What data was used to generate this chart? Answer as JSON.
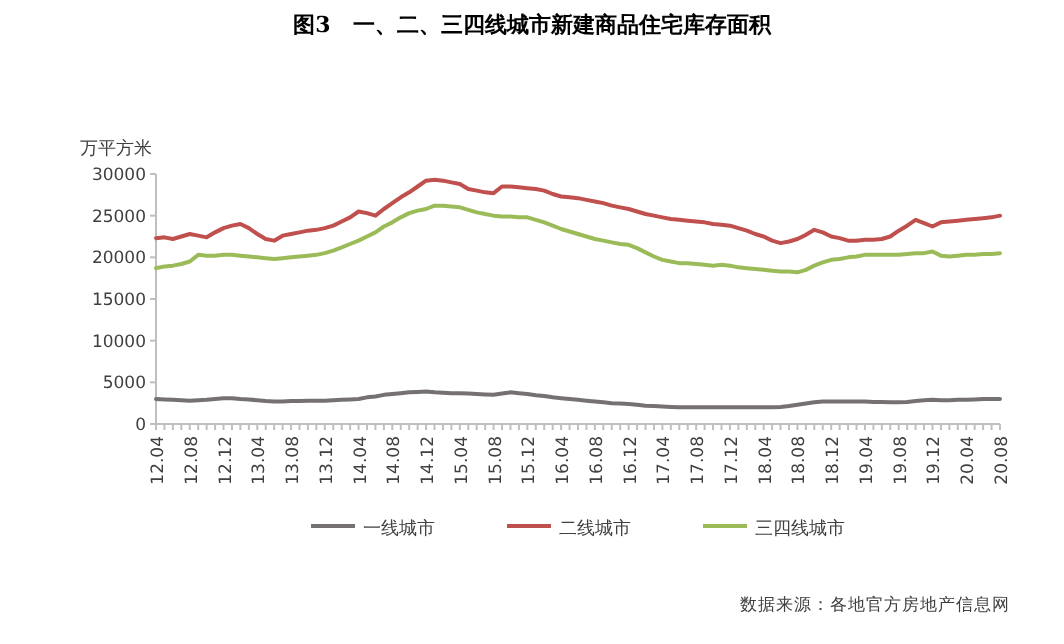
{
  "chart_data": {
    "type": "line",
    "title": "图3　一、二、三四线城市新建商品住宅库存面积",
    "ylabel": "万平方米",
    "annotations": [
      "数据来源：各地官方房地产信息网"
    ],
    "categories": [
      "12.04",
      null,
      null,
      null,
      "12.08",
      null,
      null,
      null,
      "12.12",
      null,
      null,
      null,
      "13.04",
      null,
      null,
      null,
      "13.08",
      null,
      null,
      null,
      "13.12",
      null,
      null,
      null,
      "14.04",
      null,
      null,
      null,
      "14.08",
      null,
      null,
      null,
      "14.12",
      null,
      null,
      null,
      "15.04",
      null,
      null,
      null,
      "15.08",
      null,
      null,
      null,
      "15.12",
      null,
      null,
      null,
      "16.04",
      null,
      null,
      null,
      "16.08",
      null,
      null,
      null,
      "16.12",
      null,
      null,
      null,
      "17.04",
      null,
      null,
      null,
      "17.08",
      null,
      null,
      null,
      "17.12",
      null,
      null,
      null,
      "18.04",
      null,
      null,
      null,
      "18.08",
      null,
      null,
      null,
      "18.12",
      null,
      null,
      null,
      "19.04",
      null,
      null,
      null,
      "19.08",
      null,
      null,
      null,
      "19.12",
      null,
      null,
      null,
      "20.04",
      null,
      null,
      null,
      "20.08"
    ],
    "series": [
      {
        "name": "一线城市",
        "color": "#767171",
        "values": [
          3000,
          2950,
          2900,
          2850,
          2800,
          2850,
          2900,
          3000,
          3100,
          3100,
          3000,
          2950,
          2850,
          2750,
          2700,
          2700,
          2750,
          2750,
          2800,
          2800,
          2800,
          2850,
          2900,
          2950,
          3000,
          3200,
          3300,
          3500,
          3600,
          3700,
          3800,
          3850,
          3900,
          3800,
          3750,
          3700,
          3700,
          3650,
          3600,
          3550,
          3500,
          3650,
          3800,
          3700,
          3600,
          3450,
          3350,
          3200,
          3100,
          3000,
          2900,
          2800,
          2700,
          2600,
          2500,
          2450,
          2400,
          2300,
          2200,
          2150,
          2100,
          2050,
          2000,
          2000,
          2000,
          2000,
          2000,
          2000,
          2000,
          2000,
          2000,
          2000,
          2000,
          2000,
          2050,
          2150,
          2300,
          2450,
          2600,
          2700,
          2700,
          2700,
          2700,
          2700,
          2700,
          2650,
          2650,
          2600,
          2600,
          2650,
          2750,
          2850,
          2900,
          2850,
          2850,
          2900,
          2900,
          2950,
          3000,
          3000,
          3000
        ]
      },
      {
        "name": "二线城市",
        "color": "#c0504d",
        "values": [
          22300,
          22400,
          22200,
          22500,
          22800,
          22600,
          22400,
          23000,
          23500,
          23800,
          24000,
          23500,
          22800,
          22200,
          22000,
          22600,
          22800,
          23000,
          23200,
          23300,
          23500,
          23800,
          24300,
          24800,
          25500,
          25300,
          25000,
          25800,
          26500,
          27200,
          27800,
          28500,
          29200,
          29300,
          29200,
          29000,
          28800,
          28200,
          28000,
          27800,
          27700,
          28500,
          28500,
          28400,
          28300,
          28200,
          28000,
          27600,
          27300,
          27200,
          27100,
          26900,
          26700,
          26500,
          26200,
          26000,
          25800,
          25500,
          25200,
          25000,
          24800,
          24600,
          24500,
          24400,
          24300,
          24200,
          24000,
          23900,
          23800,
          23500,
          23200,
          22800,
          22500,
          22000,
          21700,
          21900,
          22200,
          22700,
          23300,
          23000,
          22500,
          22300,
          22000,
          22000,
          22100,
          22100,
          22200,
          22500,
          23200,
          23800,
          24500,
          24100,
          23700,
          24200,
          24300,
          24400,
          24500,
          24600,
          24700,
          24800,
          25000
        ]
      },
      {
        "name": "三四线城市",
        "color": "#9bbb59",
        "values": [
          18700,
          18900,
          19000,
          19200,
          19500,
          20300,
          20200,
          20200,
          20300,
          20300,
          20200,
          20100,
          20000,
          19900,
          19800,
          19900,
          20000,
          20100,
          20200,
          20300,
          20500,
          20800,
          21200,
          21600,
          22000,
          22500,
          23000,
          23700,
          24200,
          24800,
          25300,
          25600,
          25800,
          26200,
          26200,
          26100,
          26000,
          25700,
          25400,
          25200,
          25000,
          24900,
          24900,
          24800,
          24800,
          24500,
          24200,
          23800,
          23400,
          23100,
          22800,
          22500,
          22200,
          22000,
          21800,
          21600,
          21500,
          21100,
          20600,
          20100,
          19700,
          19500,
          19300,
          19300,
          19200,
          19100,
          19000,
          19100,
          19000,
          18800,
          18700,
          18600,
          18500,
          18400,
          18300,
          18300,
          18200,
          18500,
          19000,
          19400,
          19700,
          19800,
          20000,
          20100,
          20300,
          20300,
          20300,
          20300,
          20300,
          20400,
          20500,
          20500,
          20700,
          20200,
          20100,
          20200,
          20300,
          20300,
          20400,
          20400,
          20500
        ]
      }
    ],
    "ylim": [
      0,
      30000
    ],
    "yticks": [
      0,
      5000,
      10000,
      15000,
      20000,
      25000,
      30000
    ],
    "grid": false,
    "legend": "bottom",
    "marker": "none",
    "line_style": "solid"
  }
}
